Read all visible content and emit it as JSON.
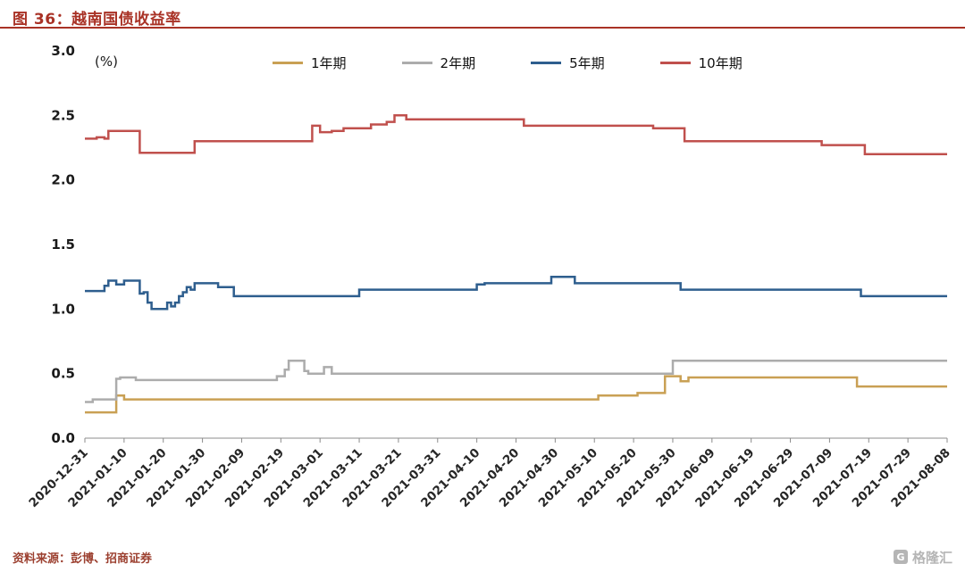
{
  "header": {
    "title": "图 36：越南国债收益率"
  },
  "footer": {
    "source": "资料来源：彭博、招商证券",
    "logo_text": "格隆汇",
    "logo_icon": "gelonghui-square-icon"
  },
  "colors": {
    "title_accent": "#A93226",
    "axis": "#8c8c8c"
  },
  "chart_data": {
    "type": "line",
    "title": "越南国债收益率",
    "unit_label": "(%)",
    "ylabel": "",
    "xlabel": "",
    "ylim": [
      0.0,
      3.0
    ],
    "y_ticks": [
      0.0,
      0.5,
      1.0,
      1.5,
      2.0,
      2.5,
      3.0
    ],
    "grid": false,
    "legend_position": "top",
    "x_ticks": [
      "2020-12-31",
      "2021-01-10",
      "2021-01-20",
      "2021-01-30",
      "2021-02-09",
      "2021-02-19",
      "2021-03-01",
      "2021-03-11",
      "2021-03-21",
      "2021-03-31",
      "2021-04-10",
      "2021-04-20",
      "2021-04-30",
      "2021-05-10",
      "2021-05-20",
      "2021-05-30",
      "2021-06-09",
      "2021-06-19",
      "2021-06-29",
      "2021-07-09",
      "2021-07-19",
      "2021-07-29",
      "2021-08-08"
    ],
    "x_tick_days": [
      0,
      10,
      20,
      30,
      40,
      50,
      60,
      70,
      80,
      90,
      100,
      110,
      120,
      130,
      140,
      150,
      160,
      170,
      180,
      190,
      200,
      210,
      220
    ],
    "x_range_days": [
      0,
      220
    ],
    "series": [
      {
        "name": "1年期",
        "color": "#C9A054",
        "points": [
          [
            0,
            0.2
          ],
          [
            7,
            0.2
          ],
          [
            8,
            0.33
          ],
          [
            10,
            0.3
          ],
          [
            129,
            0.3
          ],
          [
            131,
            0.33
          ],
          [
            139,
            0.33
          ],
          [
            141,
            0.35
          ],
          [
            147,
            0.35
          ],
          [
            148,
            0.48
          ],
          [
            151,
            0.48
          ],
          [
            152,
            0.44
          ],
          [
            154,
            0.47
          ],
          [
            195,
            0.47
          ],
          [
            197,
            0.4
          ],
          [
            220,
            0.4
          ]
        ]
      },
      {
        "name": "2年期",
        "color": "#ACACAC",
        "points": [
          [
            0,
            0.28
          ],
          [
            2,
            0.3
          ],
          [
            7,
            0.3
          ],
          [
            8,
            0.46
          ],
          [
            9,
            0.47
          ],
          [
            12,
            0.47
          ],
          [
            13,
            0.45
          ],
          [
            47,
            0.45
          ],
          [
            49,
            0.48
          ],
          [
            51,
            0.53
          ],
          [
            52,
            0.6
          ],
          [
            55,
            0.6
          ],
          [
            56,
            0.52
          ],
          [
            57,
            0.5
          ],
          [
            60,
            0.5
          ],
          [
            61,
            0.55
          ],
          [
            63,
            0.5
          ],
          [
            148,
            0.5
          ],
          [
            150,
            0.6
          ],
          [
            220,
            0.6
          ]
        ]
      },
      {
        "name": "5年期",
        "color": "#2E5E8E",
        "points": [
          [
            0,
            1.14
          ],
          [
            4,
            1.14
          ],
          [
            5,
            1.18
          ],
          [
            6,
            1.22
          ],
          [
            8,
            1.19
          ],
          [
            10,
            1.22
          ],
          [
            13,
            1.22
          ],
          [
            14,
            1.12
          ],
          [
            15,
            1.13
          ],
          [
            16,
            1.05
          ],
          [
            17,
            1.0
          ],
          [
            20,
            1.0
          ],
          [
            21,
            1.05
          ],
          [
            22,
            1.02
          ],
          [
            23,
            1.05
          ],
          [
            24,
            1.1
          ],
          [
            25,
            1.13
          ],
          [
            26,
            1.17
          ],
          [
            27,
            1.15
          ],
          [
            28,
            1.2
          ],
          [
            33,
            1.2
          ],
          [
            34,
            1.17
          ],
          [
            37,
            1.17
          ],
          [
            38,
            1.1
          ],
          [
            68,
            1.1
          ],
          [
            70,
            1.15
          ],
          [
            98,
            1.15
          ],
          [
            100,
            1.19
          ],
          [
            102,
            1.2
          ],
          [
            117,
            1.2
          ],
          [
            119,
            1.25
          ],
          [
            123,
            1.25
          ],
          [
            125,
            1.2
          ],
          [
            150,
            1.2
          ],
          [
            152,
            1.15
          ],
          [
            196,
            1.15
          ],
          [
            198,
            1.1
          ],
          [
            220,
            1.1
          ]
        ]
      },
      {
        "name": "10年期",
        "color": "#C0504D",
        "points": [
          [
            0,
            2.32
          ],
          [
            3,
            2.33
          ],
          [
            5,
            2.32
          ],
          [
            6,
            2.38
          ],
          [
            13,
            2.38
          ],
          [
            14,
            2.21
          ],
          [
            26,
            2.21
          ],
          [
            28,
            2.3
          ],
          [
            57,
            2.3
          ],
          [
            58,
            2.42
          ],
          [
            60,
            2.37
          ],
          [
            63,
            2.38
          ],
          [
            66,
            2.4
          ],
          [
            71,
            2.4
          ],
          [
            73,
            2.43
          ],
          [
            77,
            2.45
          ],
          [
            79,
            2.5
          ],
          [
            82,
            2.47
          ],
          [
            110,
            2.47
          ],
          [
            112,
            2.42
          ],
          [
            143,
            2.42
          ],
          [
            145,
            2.4
          ],
          [
            151,
            2.4
          ],
          [
            153,
            2.3
          ],
          [
            186,
            2.3
          ],
          [
            188,
            2.27
          ],
          [
            197,
            2.27
          ],
          [
            199,
            2.2
          ],
          [
            220,
            2.2
          ]
        ]
      }
    ]
  }
}
